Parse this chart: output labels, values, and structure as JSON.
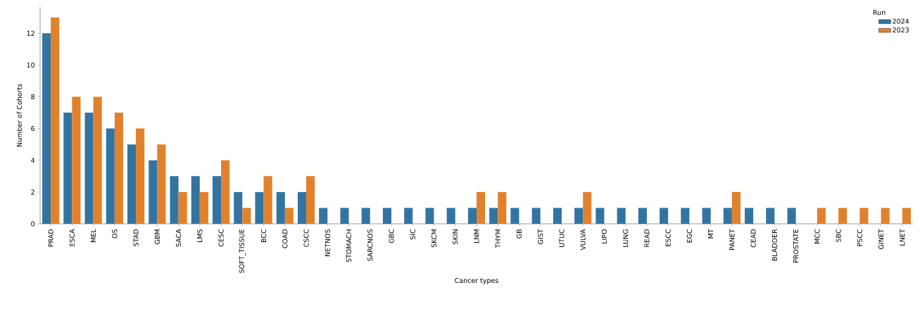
{
  "chart_data": {
    "type": "bar",
    "xlabel": "Cancer types",
    "ylabel": "Number of Cohorts",
    "legend_title": "Run",
    "categories": [
      "PRAD",
      "ESCA",
      "MEL",
      "OS",
      "STAD",
      "GBM",
      "SACA",
      "LMS",
      "CESC",
      "SOFT_TISSUE",
      "BCC",
      "COAD",
      "CSCC",
      "NETNOS",
      "STOMACH",
      "SARCNOS",
      "GBC",
      "SIC",
      "SKCM",
      "SKIN",
      "LNM",
      "THYM",
      "GB",
      "GIST",
      "UTUC",
      "VULVA",
      "LIPO",
      "LUNG",
      "READ",
      "ESCC",
      "EGC",
      "MT",
      "PANET",
      "CEAD",
      "BLADDER",
      "PROSTATE",
      "MCC",
      "SBC",
      "PSCC",
      "GINET",
      "LNET"
    ],
    "series": [
      {
        "name": "2024",
        "color": "#3274a1",
        "values": [
          12,
          7,
          7,
          6,
          5,
          4,
          3,
          3,
          3,
          2,
          2,
          2,
          2,
          1,
          1,
          1,
          1,
          1,
          1,
          1,
          1,
          1,
          1,
          1,
          1,
          1,
          1,
          1,
          1,
          1,
          1,
          1,
          1,
          1,
          1,
          1,
          0,
          0,
          0,
          0,
          0
        ]
      },
      {
        "name": "2023",
        "color": "#e1812c",
        "values": [
          13,
          8,
          8,
          7,
          6,
          5,
          2,
          2,
          4,
          1,
          3,
          1,
          3,
          0,
          0,
          0,
          0,
          0,
          0,
          0,
          2,
          2,
          0,
          0,
          0,
          2,
          0,
          0,
          0,
          0,
          0,
          0,
          2,
          0,
          0,
          0,
          1,
          1,
          1,
          1,
          1
        ]
      }
    ],
    "ylim": [
      0,
      13.65
    ],
    "yticks": [
      0,
      2,
      4,
      6,
      8,
      10,
      12
    ],
    "grid": false,
    "legend": "top right"
  }
}
